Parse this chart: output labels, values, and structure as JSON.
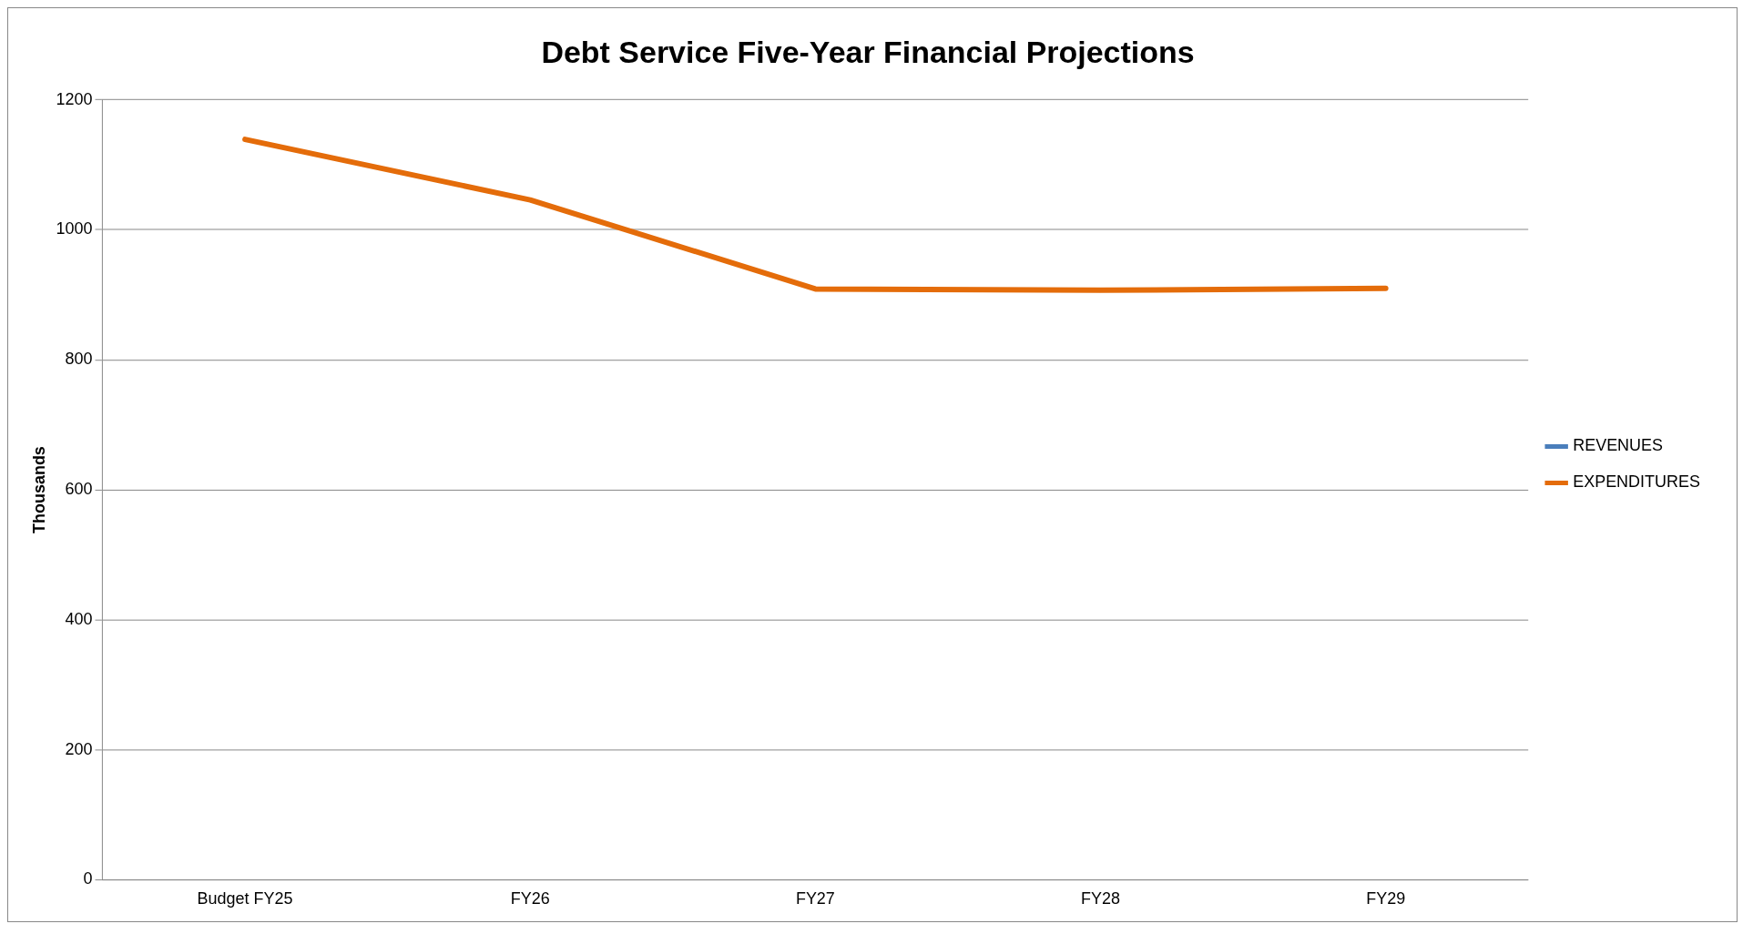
{
  "chart_data": {
    "type": "line",
    "title": "Debt Service Five-Year Financial Projections",
    "ylabel": "Thousands",
    "categories": [
      "Budget FY25",
      "FY26",
      "FY27",
      "FY28",
      "FY29"
    ],
    "series": [
      {
        "name": "REVENUES",
        "color": "#4a7ebb",
        "values": [
          null,
          null,
          null,
          null,
          null
        ]
      },
      {
        "name": "EXPENDITURES",
        "color": "#e46c0a",
        "values": [
          1139,
          1046,
          909,
          907,
          910
        ]
      }
    ],
    "ylim": [
      0,
      1200
    ],
    "yticks": [
      0,
      200,
      400,
      600,
      800,
      1000,
      1200
    ],
    "grid": "y",
    "legend": "right",
    "marker": "none",
    "line_style": "solid"
  }
}
